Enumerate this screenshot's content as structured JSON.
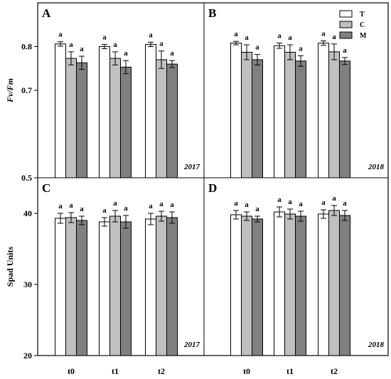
{
  "chart_data": {
    "type": "bar",
    "categories": [
      "t0",
      "t1",
      "t2"
    ],
    "legend": {
      "placement": "top-right",
      "entries": [
        {
          "label": "T",
          "color": "#ffffff"
        },
        {
          "label": "C",
          "color": "#c0c0c0"
        },
        {
          "label": "M",
          "color": "#808080"
        }
      ]
    },
    "rows": [
      {
        "ylabel": "Fv/Fm",
        "ylim": [
          0.5,
          0.9
        ],
        "yticks": [
          "0.5",
          "0.7",
          "0.8"
        ],
        "yticks_values": [
          0.5,
          0.7,
          0.8
        ]
      },
      {
        "ylabel": "Spad Units",
        "ylim": [
          20,
          45
        ],
        "yticks": [
          "20",
          "30",
          "40"
        ],
        "yticks_values": [
          20,
          30,
          40
        ]
      }
    ],
    "panels": [
      {
        "letter": "A",
        "year": "2017",
        "row": 0,
        "series": [
          {
            "name": "T",
            "values": [
              0.806,
              0.8,
              0.805
            ],
            "errors": [
              0.005,
              0.005,
              0.005
            ],
            "labels": [
              "a",
              "a",
              "a"
            ]
          },
          {
            "name": "C",
            "values": [
              0.773,
              0.773,
              0.77
            ],
            "errors": [
              0.015,
              0.015,
              0.02
            ],
            "labels": [
              "a",
              "a",
              "a"
            ]
          },
          {
            "name": "M",
            "values": [
              0.763,
              0.753,
              0.76
            ],
            "errors": [
              0.015,
              0.015,
              0.008
            ],
            "labels": [
              "a",
              "a",
              "a"
            ]
          }
        ]
      },
      {
        "letter": "B",
        "year": "2018",
        "row": 0,
        "series": [
          {
            "name": "T",
            "values": [
              0.808,
              0.802,
              0.808
            ],
            "errors": [
              0.004,
              0.006,
              0.005
            ],
            "labels": [
              "a",
              "a",
              "a"
            ]
          },
          {
            "name": "C",
            "values": [
              0.787,
              0.787,
              0.788
            ],
            "errors": [
              0.017,
              0.017,
              0.018
            ],
            "labels": [
              "a",
              "a",
              "a"
            ]
          },
          {
            "name": "M",
            "values": [
              0.77,
              0.767,
              0.767
            ],
            "errors": [
              0.012,
              0.012,
              0.008
            ],
            "labels": [
              "a",
              "a",
              "a"
            ]
          }
        ]
      },
      {
        "letter": "C",
        "year": "2017",
        "row": 1,
        "series": [
          {
            "name": "T",
            "values": [
              39.3,
              38.8,
              39.2
            ],
            "errors": [
              0.7,
              0.6,
              0.8
            ],
            "labels": [
              "a",
              "a",
              "a"
            ]
          },
          {
            "name": "C",
            "values": [
              39.4,
              39.6,
              39.6
            ],
            "errors": [
              0.7,
              0.8,
              0.7
            ],
            "labels": [
              "a",
              "a",
              "a"
            ]
          },
          {
            "name": "M",
            "values": [
              39.0,
              38.8,
              39.4
            ],
            "errors": [
              0.6,
              0.9,
              0.8
            ],
            "labels": [
              "a",
              "a",
              "a"
            ]
          }
        ]
      },
      {
        "letter": "D",
        "year": "2018",
        "row": 1,
        "series": [
          {
            "name": "T",
            "values": [
              39.8,
              40.2,
              39.9
            ],
            "errors": [
              0.6,
              0.7,
              0.6
            ],
            "labels": [
              "a",
              "a",
              "a"
            ]
          },
          {
            "name": "C",
            "values": [
              39.6,
              39.9,
              40.4
            ],
            "errors": [
              0.6,
              0.7,
              0.7
            ],
            "labels": [
              "a",
              "a",
              "a"
            ]
          },
          {
            "name": "M",
            "values": [
              39.2,
              39.6,
              39.7
            ],
            "errors": [
              0.4,
              0.7,
              0.7
            ],
            "labels": [
              "a",
              "a",
              "a"
            ]
          }
        ]
      }
    ]
  }
}
